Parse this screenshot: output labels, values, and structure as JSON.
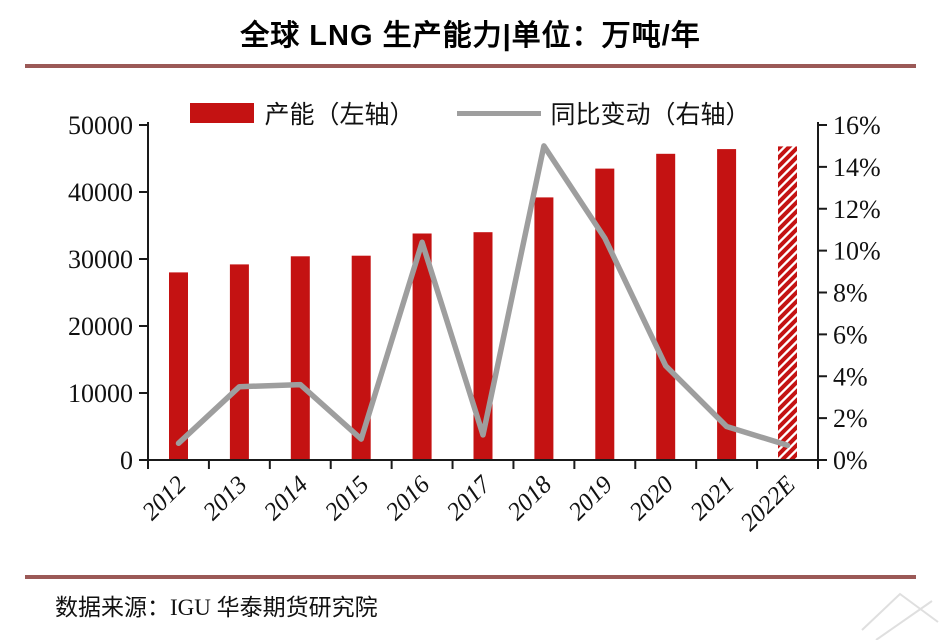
{
  "title": "全球 LNG 生产能力|单位：万吨/年",
  "legend": {
    "bar_label": "产能（左轴）",
    "line_label": "同比变动（右轴）"
  },
  "footer": {
    "source_label": "数据来源：IGU 华泰期货研究院"
  },
  "colors": {
    "bar_red": "#c41212",
    "line_gray": "#9e9e9e",
    "rule_maroon": "#9b5957",
    "axis_black": "#1a1a1a"
  },
  "chart_data": {
    "type": "bar",
    "subtype": "combo-bar-line",
    "title": "全球 LNG 生产能力|单位：万吨/年",
    "unit": "万吨/年",
    "categories": [
      "2012",
      "2013",
      "2014",
      "2015",
      "2016",
      "2017",
      "2018",
      "2019",
      "2020",
      "2021",
      "2022E"
    ],
    "series": [
      {
        "name": "产能（左轴）",
        "type": "bar",
        "axis": "left",
        "color": "#c41212",
        "values": [
          28000,
          29200,
          30400,
          30500,
          33800,
          34000,
          39200,
          43500,
          45700,
          46400,
          46800
        ],
        "forecast_category": "2022E",
        "forecast_style": "red diagonal hatch"
      },
      {
        "name": "同比变动（右轴）",
        "type": "line",
        "axis": "right",
        "color": "#9e9e9e",
        "values_pct": [
          0.8,
          3.5,
          3.6,
          1.0,
          10.4,
          1.2,
          15.0,
          10.6,
          4.5,
          1.6,
          0.7
        ]
      }
    ],
    "left_axis": {
      "range": [
        0,
        50000
      ],
      "ticks": [
        0,
        10000,
        20000,
        30000,
        40000,
        50000
      ]
    },
    "right_axis": {
      "range_pct": [
        0,
        16
      ],
      "tick_labels": [
        "0%",
        "2%",
        "4%",
        "6%",
        "8%",
        "10%",
        "12%",
        "14%",
        "16%"
      ]
    },
    "grid": false,
    "legend_position": "top-center"
  }
}
